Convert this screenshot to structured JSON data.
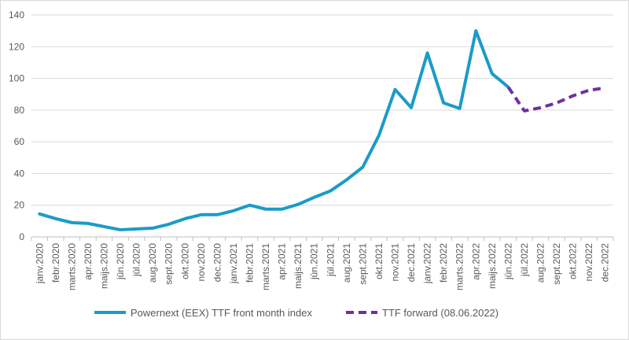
{
  "chart_data": {
    "type": "line",
    "title": "",
    "xlabel": "",
    "ylabel": "",
    "ylim": [
      0,
      140
    ],
    "yticks": [
      0,
      20,
      40,
      60,
      80,
      100,
      120,
      140
    ],
    "grid": true,
    "legend_position": "bottom",
    "categories": [
      "janv.2020",
      "febr.2020",
      "marts.2020",
      "apr.2020",
      "maijs.2020",
      "jūn.2020",
      "jūl.2020",
      "aug.2020",
      "sept.2020",
      "okt.2020",
      "nov.2020",
      "dec.2020",
      "janv.2021",
      "febr.2021",
      "marts.2021",
      "apr.2021",
      "maijs.2021",
      "jūn.2021",
      "jūl.2021",
      "aug.2021",
      "sept.2021",
      "okt.2021",
      "nov.2021",
      "dec.2021",
      "janv.2022",
      "febr.2022",
      "marts.2022",
      "apr.2022",
      "maijs.2022",
      "jūn.2022",
      "jūl.2022",
      "aug.2022",
      "sept.2022",
      "okt.2022",
      "nov.2022",
      "dec.2022"
    ],
    "series": [
      {
        "name": "Powernext (EEX) TTF front month index",
        "color": "#1b9bc9",
        "style": "solid",
        "values": [
          14.5,
          11.5,
          9,
          8.5,
          6.5,
          4.5,
          5,
          5.5,
          8,
          11.5,
          14,
          14,
          16.5,
          20,
          17.5,
          17.5,
          20.5,
          25,
          29,
          36,
          44,
          64,
          93,
          81.5,
          116,
          84.5,
          81,
          130,
          103,
          94.5,
          null,
          null,
          null,
          null,
          null,
          null
        ]
      },
      {
        "name": "TTF forward (08.06.2022)",
        "color": "#7030a0",
        "style": "dashed",
        "values": [
          null,
          null,
          null,
          null,
          null,
          null,
          null,
          null,
          null,
          null,
          null,
          null,
          null,
          null,
          null,
          null,
          null,
          null,
          null,
          null,
          null,
          null,
          null,
          null,
          null,
          null,
          null,
          null,
          null,
          94.5,
          79.5,
          81.5,
          84.5,
          89,
          92.5,
          94
        ]
      }
    ]
  }
}
